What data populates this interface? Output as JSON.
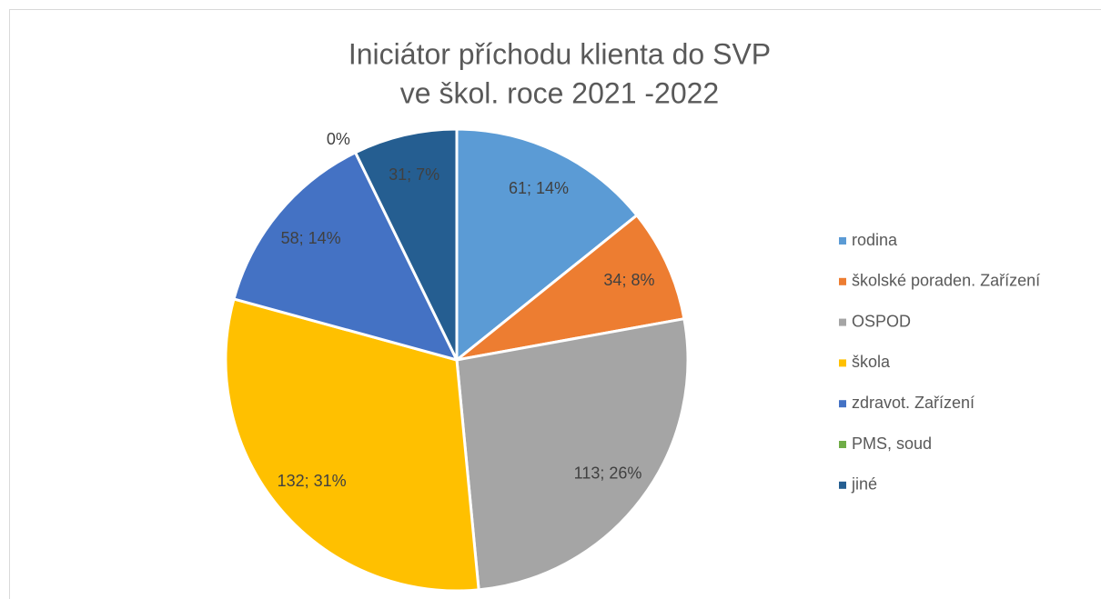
{
  "chart_data": {
    "type": "pie",
    "title": [
      "Iniciátor příchodu klienta do SVP",
      "ve škol. roce 2021 -2022"
    ],
    "categories": [
      "rodina",
      "školské poraden. Zařízení",
      "OSPOD",
      "škola",
      "zdravot. Zařízení",
      "PMS, soud",
      "jiné"
    ],
    "values": [
      61,
      34,
      113,
      132,
      58,
      0,
      31
    ],
    "value_labels": [
      "61; 14%",
      "34; 8%",
      "113; 26%",
      "132; 31%",
      "58; 14%",
      "0%",
      "31; 7%"
    ],
    "colors": [
      "#5b9bd5",
      "#ed7d31",
      "#a5a5a5",
      "#ffc000",
      "#4472c4",
      "#70ad47",
      "#255e91"
    ],
    "legend": "right"
  }
}
